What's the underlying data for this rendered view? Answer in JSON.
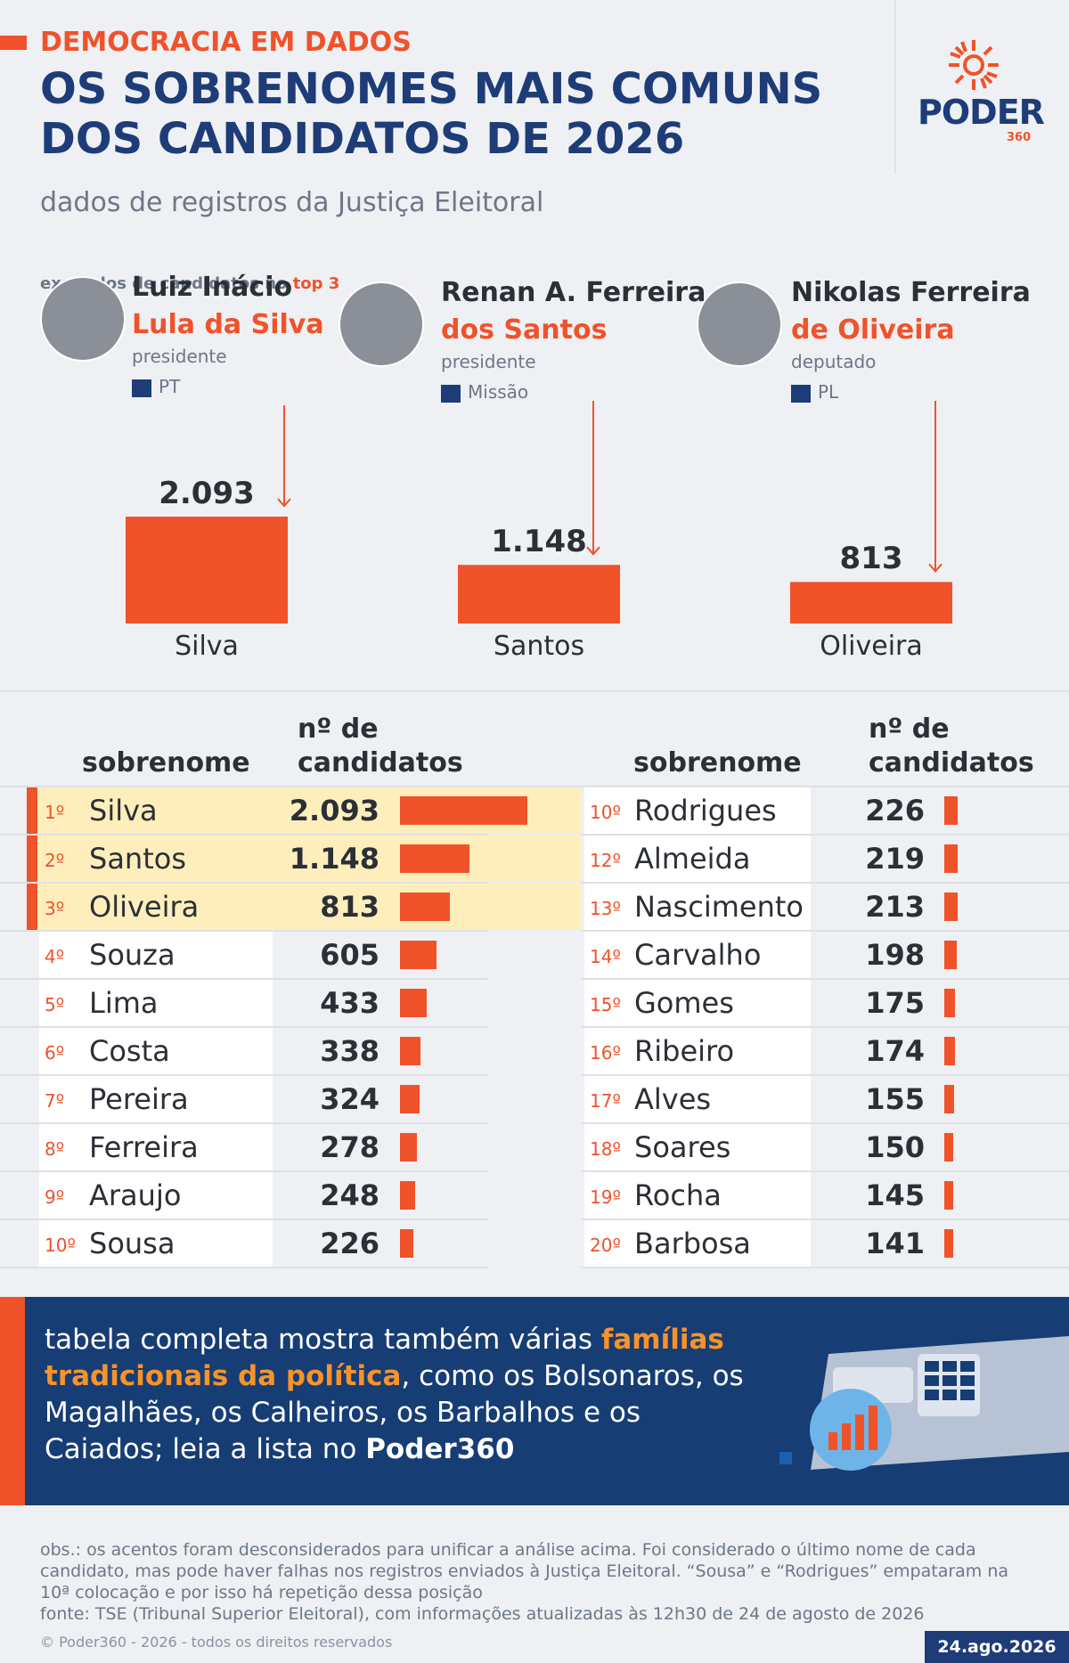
{
  "header": {
    "kicker": "DEMOCRACIA EM DADOS",
    "title": "OS SOBRENOMES MAIS COMUNS DOS CANDIDATOS DE 2026",
    "subtitle": "dados de registros da Justiça Eleitoral",
    "logo": "PODER",
    "logo_sub": "360"
  },
  "examples": {
    "label": "exemplos de candidatos no",
    "label_highlight": "top 3",
    "people": [
      {
        "name_line1": "Luiz Inácio",
        "name_line2": "Lula da",
        "surname": "Silva",
        "role": "presidente",
        "party": "PT"
      },
      {
        "name_line1": "Renan A. Ferreira",
        "name_line2": "dos",
        "surname": "Santos",
        "role": "presidente",
        "party": "Missão"
      },
      {
        "name_line1": "Nikolas Ferreira",
        "name_line2": "de",
        "surname": "Oliveira",
        "role": "deputado",
        "party": "PL"
      }
    ]
  },
  "chart_data": {
    "type": "bar",
    "categories": [
      "Silva",
      "Santos",
      "Oliveira"
    ],
    "values": [
      2093,
      1148,
      813
    ],
    "value_labels": [
      "2.093",
      "1.148",
      "813"
    ],
    "color": "#f0522a"
  },
  "table": {
    "headers": [
      "sobrenome",
      "nº de candidatos"
    ],
    "color": "#f0522a",
    "left": [
      {
        "rank": "1º",
        "name": "Silva",
        "count": "2.093",
        "value": 2093
      },
      {
        "rank": "2º",
        "name": "Santos",
        "count": "1.148",
        "value": 1148
      },
      {
        "rank": "3º",
        "name": "Oliveira",
        "count": "813",
        "value": 813
      },
      {
        "rank": "4º",
        "name": "Souza",
        "count": "605",
        "value": 605
      },
      {
        "rank": "5º",
        "name": "Lima",
        "count": "433",
        "value": 433
      },
      {
        "rank": "6º",
        "name": "Costa",
        "count": "338",
        "value": 338
      },
      {
        "rank": "7º",
        "name": "Pereira",
        "count": "324",
        "value": 324
      },
      {
        "rank": "8º",
        "name": "Ferreira",
        "count": "278",
        "value": 278
      },
      {
        "rank": "9º",
        "name": "Araujo",
        "count": "248",
        "value": 248
      },
      {
        "rank": "10º",
        "name": "Sousa",
        "count": "226",
        "value": 226
      }
    ],
    "right": [
      {
        "rank": "10º",
        "name": "Rodrigues",
        "count": "226",
        "value": 226
      },
      {
        "rank": "12º",
        "name": "Almeida",
        "count": "219",
        "value": 219
      },
      {
        "rank": "13º",
        "name": "Nascimento",
        "count": "213",
        "value": 213
      },
      {
        "rank": "14º",
        "name": "Carvalho",
        "count": "198",
        "value": 198
      },
      {
        "rank": "15º",
        "name": "Gomes",
        "count": "175",
        "value": 175
      },
      {
        "rank": "16º",
        "name": "Ribeiro",
        "count": "174",
        "value": 174
      },
      {
        "rank": "17º",
        "name": "Alves",
        "count": "155",
        "value": 155
      },
      {
        "rank": "18º",
        "name": "Soares",
        "count": "150",
        "value": 150
      },
      {
        "rank": "19º",
        "name": "Rocha",
        "count": "145",
        "value": 145
      },
      {
        "rank": "20º",
        "name": "Barbosa",
        "count": "141",
        "value": 141
      }
    ]
  },
  "banner": {
    "text1": "tabela completa mostra também várias ",
    "highlight": "famílias tradicionais da política",
    "text2": ", como os Bolsonaros, os Magalhães, os Calheiros, os Barbalhos e os Caiados; leia a lista no ",
    "link": "Poder360"
  },
  "footer": {
    "obs": "obs.: os acentos foram desconsiderados para unificar a análise acima. Foi considerado o último nome de cada candidato, mas pode haver falhas nos registros enviados à Justiça Eleitoral. “Sousa” e “Rodrigues” empataram na 10ª colocação e por isso há repetição dessa posição",
    "source": "fonte: TSE (Tribunal Superior Eleitoral), com informações atualizadas às 12h30 de 24 de agosto de 2026",
    "copyright": "© Poder360 - 2026 - todos os direitos reservados",
    "date": "24.ago.2026"
  }
}
